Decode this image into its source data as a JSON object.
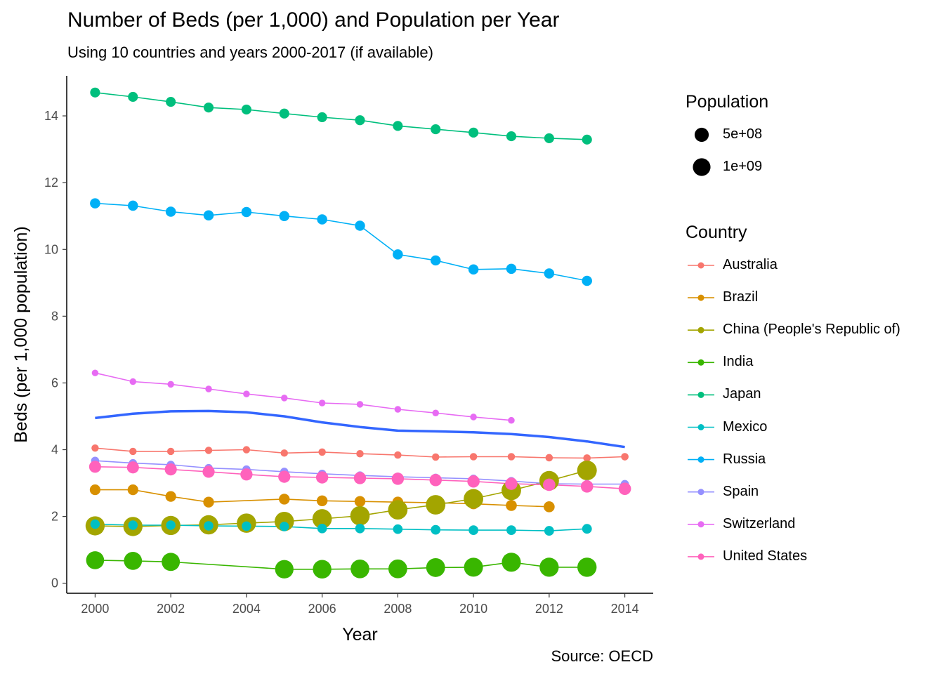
{
  "title": "Number of Beds (per 1,000) and Population per Year",
  "subtitle": "Using 10 countries and years 2000-2017 (if available)",
  "caption": "Source: OECD",
  "chart_data": {
    "type": "scatter",
    "xlabel": "Year",
    "ylabel": "Beds (per 1,000 population)",
    "xlim": [
      1999.25,
      2014.75
    ],
    "ylim": [
      -0.3,
      15.2
    ],
    "x_ticks": [
      2000,
      2002,
      2004,
      2006,
      2008,
      2010,
      2012,
      2014
    ],
    "y_ticks": [
      0,
      2,
      4,
      6,
      8,
      10,
      12,
      14
    ],
    "grid": false,
    "legend_position": "right",
    "size_legend": {
      "title": "Population",
      "entries": [
        {
          "label": "5e+08",
          "value": 500000000
        },
        {
          "label": "1e+09",
          "value": 1000000000
        }
      ]
    },
    "color_legend_title": "Country",
    "series": [
      {
        "name": "Australia",
        "color": "#F8766D",
        "x": [
          2000,
          2001,
          2002,
          2003,
          2004,
          2005,
          2006,
          2007,
          2008,
          2009,
          2010,
          2011,
          2012,
          2013,
          2014
        ],
        "y": [
          4.05,
          3.95,
          3.95,
          3.98,
          4.0,
          3.9,
          3.93,
          3.88,
          3.84,
          3.78,
          3.79,
          3.79,
          3.76,
          3.75,
          3.79
        ],
        "population": [
          19000000,
          19300000,
          19600000,
          19900000,
          20100000,
          20400000,
          20700000,
          21000000,
          21400000,
          21800000,
          22000000,
          22300000,
          22700000,
          23100000,
          23500000
        ]
      },
      {
        "name": "Brazil",
        "color": "#D89000",
        "x": [
          2000,
          2001,
          2002,
          2003,
          2005,
          2006,
          2007,
          2008,
          2009,
          2010,
          2011,
          2012
        ],
        "y": [
          2.8,
          2.8,
          2.6,
          2.43,
          2.52,
          2.47,
          2.45,
          2.43,
          2.41,
          2.38,
          2.33,
          2.29
        ],
        "population": [
          174000000,
          176000000,
          179000000,
          181000000,
          186000000,
          188000000,
          190000000,
          192000000,
          194000000,
          196000000,
          198000000,
          199000000
        ]
      },
      {
        "name": "China (People's Republic of)",
        "color": "#A3A500",
        "x": [
          2000,
          2001,
          2002,
          2003,
          2004,
          2005,
          2006,
          2007,
          2008,
          2009,
          2010,
          2011,
          2012,
          2013
        ],
        "y": [
          1.72,
          1.7,
          1.73,
          1.75,
          1.8,
          1.85,
          1.93,
          2.02,
          2.2,
          2.35,
          2.53,
          2.78,
          3.07,
          3.38
        ],
        "population": [
          1262000000,
          1271000000,
          1280000000,
          1288000000,
          1296000000,
          1304000000,
          1311000000,
          1318000000,
          1325000000,
          1331000000,
          1338000000,
          1344000000,
          1351000000,
          1357000000
        ]
      },
      {
        "name": "India",
        "color": "#39B600",
        "x": [
          2000,
          2001,
          2002,
          2005,
          2006,
          2007,
          2008,
          2009,
          2010,
          2011,
          2012,
          2013
        ],
        "y": [
          0.69,
          0.67,
          0.64,
          0.42,
          0.42,
          0.43,
          0.43,
          0.47,
          0.48,
          0.63,
          0.48,
          0.48
        ],
        "population": [
          1053000000,
          1071000000,
          1089000000,
          1144000000,
          1162000000,
          1179000000,
          1197000000,
          1214000000,
          1231000000,
          1247000000,
          1263000000,
          1279000000
        ]
      },
      {
        "name": "Japan",
        "color": "#00BF7D",
        "x": [
          2000,
          2001,
          2002,
          2003,
          2004,
          2005,
          2006,
          2007,
          2008,
          2009,
          2010,
          2011,
          2012,
          2013
        ],
        "y": [
          14.7,
          14.57,
          14.42,
          14.25,
          14.19,
          14.07,
          13.96,
          13.87,
          13.7,
          13.6,
          13.5,
          13.39,
          13.33,
          13.29
        ],
        "population": [
          126800000,
          127100000,
          127400000,
          127600000,
          127700000,
          127800000,
          127800000,
          127800000,
          127700000,
          127600000,
          128000000,
          127800000,
          127600000,
          127400000
        ]
      },
      {
        "name": "Mexico",
        "color": "#00BFC4",
        "x": [
          2000,
          2001,
          2002,
          2003,
          2004,
          2005,
          2006,
          2007,
          2008,
          2009,
          2010,
          2011,
          2012,
          2013
        ],
        "y": [
          1.77,
          1.74,
          1.74,
          1.72,
          1.71,
          1.7,
          1.64,
          1.64,
          1.62,
          1.6,
          1.59,
          1.59,
          1.57,
          1.63
        ],
        "population": [
          98400000,
          99900000,
          101300000,
          102700000,
          104000000,
          105300000,
          106500000,
          107800000,
          109300000,
          110800000,
          112300000,
          113800000,
          115300000,
          116800000
        ]
      },
      {
        "name": "Russia",
        "color": "#00B0F6",
        "x": [
          2000,
          2001,
          2002,
          2003,
          2004,
          2005,
          2006,
          2007,
          2008,
          2009,
          2010,
          2011,
          2012,
          2013
        ],
        "y": [
          11.38,
          11.31,
          11.13,
          11.02,
          11.12,
          11.0,
          10.9,
          10.71,
          9.85,
          9.67,
          9.4,
          9.42,
          9.28,
          9.06
        ],
        "population": [
          146600000,
          146000000,
          145300000,
          144600000,
          144100000,
          143500000,
          143000000,
          142800000,
          142700000,
          142800000,
          142800000,
          142900000,
          143200000,
          143500000
        ]
      },
      {
        "name": "Spain",
        "color": "#9590FF",
        "x": [
          2000,
          2001,
          2002,
          2003,
          2004,
          2005,
          2006,
          2007,
          2008,
          2009,
          2010,
          2011,
          2012,
          2013,
          2014
        ],
        "y": [
          3.67,
          3.6,
          3.55,
          3.45,
          3.41,
          3.34,
          3.28,
          3.23,
          3.19,
          3.16,
          3.13,
          3.06,
          2.98,
          2.97,
          2.97
        ],
        "population": [
          40300000,
          40700000,
          41400000,
          42200000,
          42900000,
          43700000,
          44400000,
          45200000,
          45900000,
          46400000,
          46600000,
          46700000,
          46800000,
          46600000,
          46500000
        ]
      },
      {
        "name": "Switzerland",
        "color": "#E76BF3",
        "x": [
          2000,
          2001,
          2002,
          2003,
          2004,
          2005,
          2006,
          2007,
          2008,
          2009,
          2010,
          2011
        ],
        "y": [
          6.3,
          6.04,
          5.96,
          5.82,
          5.67,
          5.55,
          5.4,
          5.36,
          5.21,
          5.1,
          4.98,
          4.88
        ],
        "population": [
          7200000,
          7300000,
          7300000,
          7400000,
          7400000,
          7500000,
          7500000,
          7600000,
          7700000,
          7800000,
          7800000,
          7900000
        ]
      },
      {
        "name": "United States",
        "color": "#FF62BC",
        "x": [
          2000,
          2001,
          2002,
          2003,
          2004,
          2005,
          2006,
          2007,
          2008,
          2009,
          2010,
          2011,
          2012,
          2013,
          2014
        ],
        "y": [
          3.49,
          3.47,
          3.41,
          3.34,
          3.26,
          3.19,
          3.17,
          3.15,
          3.13,
          3.09,
          3.05,
          2.98,
          2.95,
          2.9,
          2.83
        ],
        "population": [
          282200000,
          285000000,
          287600000,
          290100000,
          292800000,
          295500000,
          298400000,
          301200000,
          304100000,
          306800000,
          309300000,
          311600000,
          313900000,
          316100000,
          318900000
        ]
      }
    ],
    "smooth_line": {
      "color": "#3366FF",
      "x": [
        2000,
        2001,
        2002,
        2003,
        2004,
        2005,
        2006,
        2007,
        2008,
        2009,
        2010,
        2011,
        2012,
        2013,
        2014
      ],
      "y": [
        4.95,
        5.08,
        5.15,
        5.16,
        5.12,
        5.0,
        4.82,
        4.68,
        4.57,
        4.55,
        4.52,
        4.47,
        4.38,
        4.25,
        4.08
      ]
    }
  }
}
